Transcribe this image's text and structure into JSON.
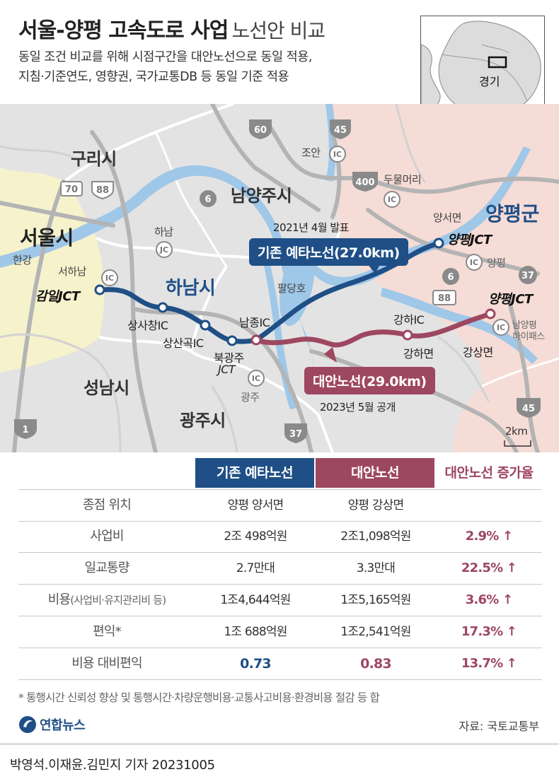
{
  "header": {
    "title_main": "서울-양평 고속도로 사업",
    "title_sub": "노선안 비교",
    "subtitle_lines": [
      "동일 조건 비교를 위해 시점구간을 대안노선으로 동일 적용,",
      "지침·기준연도, 영향권, 국가교통DB 등 동일 기준 적용"
    ]
  },
  "inset_map": {
    "label": "경기"
  },
  "map": {
    "cities": {
      "seoul": "서울시",
      "guri": "구리시",
      "namyangju": "남양주시",
      "hanam": "하남시",
      "seongnam": "성남시",
      "gwangju": "광주시",
      "yangpyeong": "양평군"
    },
    "places": {
      "hangang": "한강",
      "paldangho": "팔당호",
      "hanam_jct": "하남",
      "joan": "조안",
      "dumulmeori": "두물머리",
      "yangseo": "양서면",
      "yangpyeong_ic": "양평",
      "namyangpyeong": "남양평",
      "hipass": "하이패스",
      "gwangju_ic": "광주",
      "seohanam": "서하남"
    },
    "route_signs": [
      "60",
      "45",
      "400",
      "6",
      "70",
      "88",
      "6",
      "88",
      "37",
      "45",
      "1",
      "37"
    ],
    "ic_badge": "IC",
    "jct_badge": "JC",
    "nodes": {
      "gamil_jct": "감일JCT",
      "sangsachang_ic": "상사창IC",
      "sangsangok_ic": "상산곡IC",
      "bukgwangju_jct_1": "북광주",
      "bukgwangju_jct_2": "JCT",
      "namjong_ic": "남종IC",
      "gangha_ic": "강하IC",
      "gangha_myeon": "강하면",
      "gangsang_myeon": "강상면",
      "yangpyeong_jct_existing": "양평JCT",
      "yangpyeong_jct_alt": "양평JCT"
    },
    "existing_route": {
      "label": "기존 예타노선(27.0km)",
      "note": "2021년 4월 발표",
      "color": "#1f4f86"
    },
    "alternative_route": {
      "label": "대안노선(29.0km)",
      "note": "2023년 5월 공개",
      "color": "#9e4760"
    },
    "scale": "2km"
  },
  "table": {
    "headers": {
      "existing": "기존 예타노선",
      "alternative": "대안노선",
      "increase": "대안노선 증가율"
    },
    "rows": [
      {
        "label": "종점 위치",
        "label_sub": "",
        "existing": "양평 양서면",
        "alternative": "양평 강상면",
        "increase": ""
      },
      {
        "label": "사업비",
        "label_sub": "",
        "existing": "2조 498억원",
        "alternative": "2조1,098억원",
        "increase": "2.9% ↑"
      },
      {
        "label": "일교통량",
        "label_sub": "",
        "existing": "2.7만대",
        "alternative": "3.3만대",
        "increase": "22.5% ↑"
      },
      {
        "label": "비용",
        "label_sub": "(사업비·유지관리비 등)",
        "existing": "1조4,644억원",
        "alternative": "1조5,165억원",
        "increase": "3.6% ↑"
      },
      {
        "label": "편익*",
        "label_sub": "",
        "existing": "1조 688억원",
        "alternative": "1조2,541억원",
        "increase": "17.3% ↑"
      },
      {
        "label": "비용 대비편익",
        "label_sub": "",
        "existing": "0.73",
        "alternative": "0.83",
        "increase": "13.7% ↑"
      }
    ]
  },
  "footnote": "* 통행시간 신뢰성 향상 및 통행시간·차량운행비용·교통사고비용·환경비용 절감 등 합",
  "logo_text": "연합뉴스",
  "source": "자료: 국토교통부",
  "credit": "박영석.이재윤.김민지 기자  20231005",
  "colors": {
    "existing": "#1f4f86",
    "alternative": "#9e4760",
    "seoul_area": "#f6f2cc",
    "yangpyeong_area": "#f6dcd6",
    "water": "#9fc7e8"
  }
}
